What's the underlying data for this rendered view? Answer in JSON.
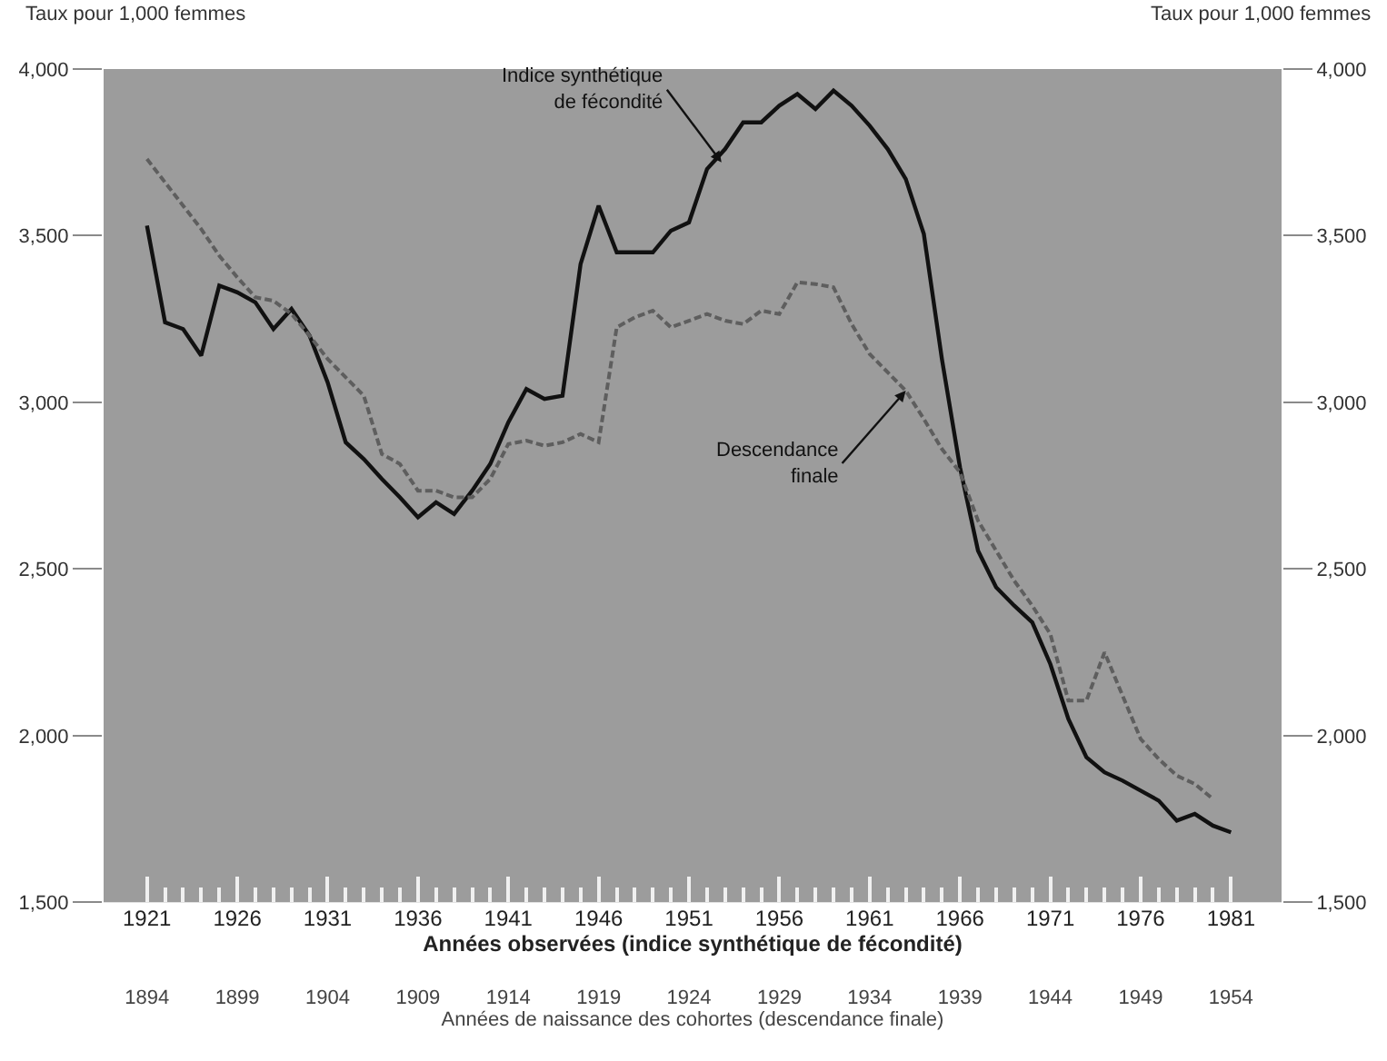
{
  "chart_data": {
    "type": "line",
    "x": [
      1921,
      1922,
      1923,
      1924,
      1925,
      1926,
      1927,
      1928,
      1929,
      1930,
      1931,
      1932,
      1933,
      1934,
      1935,
      1936,
      1937,
      1938,
      1939,
      1940,
      1941,
      1942,
      1943,
      1944,
      1945,
      1946,
      1947,
      1948,
      1949,
      1950,
      1951,
      1952,
      1953,
      1954,
      1955,
      1956,
      1957,
      1958,
      1959,
      1960,
      1961,
      1962,
      1963,
      1964,
      1965,
      1966,
      1967,
      1968,
      1969,
      1970,
      1971,
      1972,
      1973,
      1974,
      1975,
      1976,
      1977,
      1978,
      1979,
      1980,
      1981
    ],
    "series": [
      {
        "color": "#111111",
        "line_style": "solid",
        "values": [
          3530,
          3240,
          3220,
          3140,
          3350,
          3330,
          3300,
          3220,
          3280,
          3200,
          3060,
          2880,
          2830,
          2770,
          2715,
          2655,
          2700,
          2665,
          2735,
          2815,
          2940,
          3040,
          3010,
          3020,
          3415,
          3590,
          3450,
          3450,
          3450,
          3515,
          3540,
          3700,
          3760,
          3840,
          3840,
          3890,
          3925,
          3880,
          3935,
          3890,
          3830,
          3760,
          3670,
          3505,
          3130,
          2805,
          2555,
          2445,
          2390,
          2340,
          2215,
          2050,
          1935,
          1890,
          1865,
          1835,
          1805,
          1745,
          1765,
          1730,
          1710
        ]
      },
      {
        "color": "#5e5e5e",
        "line_style": "dashed",
        "values": [
          3730,
          3660,
          3590,
          3520,
          3440,
          3375,
          3315,
          3305,
          3265,
          3200,
          3130,
          3075,
          3020,
          2845,
          2815,
          2735,
          2735,
          2715,
          2715,
          2770,
          2875,
          2885,
          2870,
          2880,
          2905,
          2880,
          3225,
          3255,
          3275,
          3225,
          3245,
          3265,
          3245,
          3235,
          3275,
          3265,
          3360,
          3355,
          3345,
          3235,
          3145,
          3090,
          3035,
          2950,
          2860,
          2790,
          2645,
          2555,
          2465,
          2390,
          2305,
          2105,
          2105,
          2250,
          2120,
          1990,
          1930,
          1880,
          1855,
          1810,
          null
        ]
      }
    ],
    "xlim": [
      1918.6,
      1983.8
    ],
    "xticks": [
      1921,
      {
        "value": 1922,
        "label": null
      },
      {
        "value": 1923,
        "label": null
      },
      {
        "value": 1924,
        "label": null
      },
      {
        "value": 1925,
        "label": null
      },
      1926,
      {
        "value": 1927,
        "label": null
      },
      {
        "value": 1928,
        "label": null
      },
      {
        "value": 1929,
        "label": null
      },
      {
        "value": 1930,
        "label": null
      },
      1931,
      {
        "value": 1932,
        "label": null
      },
      {
        "value": 1933,
        "label": null
      },
      {
        "value": 1934,
        "label": null
      },
      {
        "value": 1935,
        "label": null
      },
      1936,
      {
        "value": 1937,
        "label": null
      },
      {
        "value": 1938,
        "label": null
      },
      {
        "value": 1939,
        "label": null
      },
      {
        "value": 1940,
        "label": null
      },
      1941,
      {
        "value": 1942,
        "label": null
      },
      {
        "value": 1943,
        "label": null
      },
      {
        "value": 1944,
        "label": null
      },
      {
        "value": 1945,
        "label": null
      },
      1946,
      {
        "value": 1947,
        "label": null
      },
      {
        "value": 1948,
        "label": null
      },
      {
        "value": 1949,
        "label": null
      },
      {
        "value": 1950,
        "label": null
      },
      1951,
      {
        "value": 1952,
        "label": null
      },
      {
        "value": 1953,
        "label": null
      },
      {
        "value": 1954,
        "label": null
      },
      {
        "value": 1955,
        "label": null
      },
      1956,
      {
        "value": 1957,
        "label": null
      },
      {
        "value": 1958,
        "label": null
      },
      {
        "value": 1959,
        "label": null
      },
      {
        "value": 1960,
        "label": null
      },
      1961,
      {
        "value": 1962,
        "label": null
      },
      {
        "value": 1963,
        "label": null
      },
      {
        "value": 1964,
        "label": null
      },
      {
        "value": 1965,
        "label": null
      },
      1966,
      {
        "value": 1967,
        "label": null
      },
      {
        "value": 1968,
        "label": null
      },
      {
        "value": 1969,
        "label": null
      },
      {
        "value": 1970,
        "label": null
      },
      1971,
      {
        "value": 1972,
        "label": null
      },
      {
        "value": 1973,
        "label": null
      },
      {
        "value": 1974,
        "label": null
      },
      {
        "value": 1975,
        "label": null
      },
      1976,
      {
        "value": 1977,
        "label": null
      },
      {
        "value": 1978,
        "label": null
      },
      {
        "value": 1979,
        "label": null
      },
      {
        "value": 1980,
        "label": null
      },
      1981
    ],
    "x2lim": [
      1891.6,
      1956.8
    ],
    "x2ticks": [
      1894,
      1899,
      1904,
      1909,
      1914,
      1919,
      1924,
      1929,
      1934,
      1939,
      1944,
      1949,
      1954
    ],
    "xlabel": "Années observées (indice synthétique de fécondité)",
    "x2label": "Années de naissance des cohortes (descendance finale)",
    "ylabel": "Taux pour 1,000 femmes",
    "y2label": "Taux pour 1,000 femmes",
    "ylim": [
      1500,
      4000
    ],
    "yticks": [
      {
        "value": 1500,
        "label": "1,500"
      },
      {
        "value": 2000,
        "label": "2,000"
      },
      {
        "value": 2500,
        "label": "2,500"
      },
      {
        "value": 3000,
        "label": "3,000"
      },
      {
        "value": 3500,
        "label": "3,500"
      },
      {
        "value": 4000,
        "label": "4,000"
      }
    ],
    "y2lim": [
      1500,
      4000
    ],
    "y2ticks": [
      {
        "value": 1500,
        "label": "1,500"
      },
      {
        "value": 2000,
        "label": "2,000"
      },
      {
        "value": 2500,
        "label": "2,500"
      },
      {
        "value": 3000,
        "label": "3,000"
      },
      {
        "value": 3500,
        "label": "3,500"
      },
      {
        "value": 4000,
        "label": "4,000"
      }
    ],
    "annotations": [
      {
        "text": "Indice synthétique\nde fécondité",
        "x": 1952.8,
        "y": 3720
      },
      {
        "text": "Descendance\nfinale",
        "x": 1963,
        "y": 3035
      }
    ],
    "grid": false,
    "marker": "none"
  }
}
